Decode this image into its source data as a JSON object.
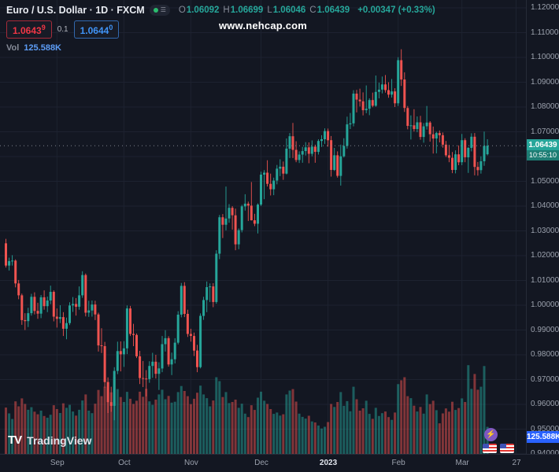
{
  "watermark": "www.nehcap.com",
  "logo_word": "TradingView",
  "logo_mark": "TV",
  "header": {
    "symbol_title": "Euro / U.S. Dollar · 1D · FXCM",
    "ohlc": {
      "o_label": "O",
      "o": "1.06092",
      "h_label": "H",
      "h": "1.06699",
      "l_label": "L",
      "l": "1.06046",
      "c_label": "C",
      "c": "1.06439",
      "change": "+0.00347 (+0.33%)"
    },
    "bid": {
      "main": "1.0643",
      "sup": "9"
    },
    "spread": "0.1",
    "ask": {
      "main": "1.0644",
      "sup": "0"
    },
    "vol_label": "Vol",
    "vol_value": "125.588K"
  },
  "price_axis": {
    "labels": [
      "1.12000",
      "1.11000",
      "1.10000",
      "1.09000",
      "1.08000",
      "1.07000",
      "1.05000",
      "1.04000",
      "1.03000",
      "1.02000",
      "1.01000",
      "1.00000",
      "0.99000",
      "0.98000",
      "0.97000",
      "0.96000",
      "0.95000",
      "0.94000"
    ],
    "last_price_badge": {
      "price": "1.06439",
      "countdown": "10:55:10"
    },
    "volume_badge": "125.588K"
  },
  "x_axis": {
    "labels": [
      {
        "text": "Sep",
        "i": 16
      },
      {
        "text": "Oct",
        "i": 37
      },
      {
        "text": "Nov",
        "i": 58
      },
      {
        "text": "Dec",
        "i": 80
      },
      {
        "text": "2023",
        "i": 101,
        "emph": true
      },
      {
        "text": "Feb",
        "i": 123
      },
      {
        "text": "Mar",
        "i": 143
      },
      {
        "text": "27",
        "i": 160
      }
    ]
  },
  "colors": {
    "background": "#131722",
    "grid": "#1d2230",
    "up": "#26a69a",
    "down": "#ef5350",
    "axis_text": "#9ba1ad",
    "last_price_line": "#8b9098",
    "badge_price_bg": "#26a69a",
    "badge_countdown_bg": "#1d7d74",
    "badge_volume_bg": "#2962ff",
    "bid_red": "#f23645",
    "ask_blue": "#4094f7",
    "volume_value_blue": "#5d9cf5",
    "lightning_purple": "#7e57c2"
  },
  "chart_data": {
    "type": "candlestick",
    "title": "Euro / U.S. Dollar, 1D, FXCM",
    "interval": "1D",
    "price_range": [
      0.94,
      1.12
    ],
    "grid": true,
    "volume_axis_max_k": 420,
    "columns": [
      "open",
      "high",
      "low",
      "close",
      "volume_k"
    ],
    "candles": [
      [
        1.025,
        1.0268,
        1.0152,
        1.016,
        215
      ],
      [
        1.016,
        1.0192,
        1.014,
        1.0178,
        188
      ],
      [
        1.0178,
        1.0202,
        1.016,
        1.018,
        162
      ],
      [
        1.018,
        1.0185,
        1.0072,
        1.0088,
        244
      ],
      [
        1.0088,
        1.0102,
        1.0024,
        1.004,
        221
      ],
      [
        1.004,
        1.0047,
        0.9921,
        0.994,
        258
      ],
      [
        0.994,
        0.9968,
        0.99,
        0.9936,
        232
      ],
      [
        0.9936,
        0.999,
        0.9912,
        0.9968,
        205
      ],
      [
        0.9968,
        1.0046,
        0.9958,
        1.0034,
        217
      ],
      [
        1.0034,
        1.0052,
        0.9963,
        0.9977,
        196
      ],
      [
        0.9977,
        1.001,
        0.9945,
        0.9966,
        184
      ],
      [
        0.9966,
        1.0041,
        0.9948,
        1.0032,
        201
      ],
      [
        1.0032,
        1.006,
        0.9982,
        0.9996,
        176
      ],
      [
        0.9996,
        1.0035,
        0.9972,
        1.0019,
        168
      ],
      [
        1.0019,
        1.0079,
        1.0004,
        1.0054,
        182
      ],
      [
        1.0054,
        1.006,
        0.9935,
        0.9954,
        226
      ],
      [
        0.9954,
        0.9987,
        0.991,
        0.9945,
        208
      ],
      [
        0.9945,
        1.0,
        0.9928,
        0.9952,
        190
      ],
      [
        0.9952,
        0.9972,
        0.9876,
        0.9905,
        235
      ],
      [
        0.9905,
        0.995,
        0.9863,
        0.9928,
        214
      ],
      [
        0.9928,
        1.0012,
        0.992,
        0.9999,
        228
      ],
      [
        0.9999,
        1.0033,
        0.9973,
        1.0005,
        197
      ],
      [
        1.0005,
        1.0029,
        0.9958,
        0.9994,
        178
      ],
      [
        0.9994,
        1.0076,
        0.9982,
        1.004,
        205
      ],
      [
        1.004,
        1.0137,
        1.003,
        1.0122,
        248
      ],
      [
        1.0122,
        1.0128,
        0.9955,
        0.997,
        276
      ],
      [
        0.997,
        1.0018,
        0.9953,
        0.9979,
        201
      ],
      [
        0.9979,
        1.0019,
        0.9954,
        1.0003,
        189
      ],
      [
        1.0003,
        1.0018,
        0.994,
        0.9963,
        233
      ],
      [
        0.9963,
        0.997,
        0.9813,
        0.9838,
        297
      ],
      [
        0.9838,
        0.9907,
        0.9807,
        0.9835,
        268
      ],
      [
        0.9835,
        0.9852,
        0.9668,
        0.969,
        312
      ],
      [
        0.969,
        0.9709,
        0.9565,
        0.9609,
        334
      ],
      [
        0.9609,
        0.9671,
        0.957,
        0.9594,
        286
      ],
      [
        0.9594,
        0.975,
        0.9536,
        0.9735,
        358
      ],
      [
        0.9735,
        0.9853,
        0.9722,
        0.9815,
        301
      ],
      [
        0.9815,
        0.9854,
        0.9733,
        0.9802,
        264
      ],
      [
        0.9802,
        0.9855,
        0.9751,
        0.9826,
        241
      ],
      [
        0.9826,
        0.9999,
        0.9803,
        0.9987,
        288
      ],
      [
        0.9987,
        0.9997,
        0.9876,
        0.9884,
        256
      ],
      [
        0.9884,
        0.9925,
        0.9835,
        0.988,
        232
      ],
      [
        0.988,
        0.9886,
        0.9787,
        0.9794,
        247
      ],
      [
        0.9794,
        0.9816,
        0.9682,
        0.9706,
        289
      ],
      [
        0.9706,
        0.9775,
        0.967,
        0.9704,
        265
      ],
      [
        0.9704,
        0.9738,
        0.9632,
        0.9702,
        302
      ],
      [
        0.9702,
        0.9774,
        0.9687,
        0.9755,
        244
      ],
      [
        0.9755,
        0.9808,
        0.9707,
        0.9772,
        228
      ],
      [
        0.9772,
        0.98,
        0.9704,
        0.9723,
        252
      ],
      [
        0.9723,
        0.977,
        0.9658,
        0.9745,
        276
      ],
      [
        0.9745,
        0.9876,
        0.973,
        0.9843,
        298
      ],
      [
        0.9843,
        0.9899,
        0.9813,
        0.9867,
        254
      ],
      [
        0.9867,
        0.9875,
        0.9752,
        0.9761,
        269
      ],
      [
        0.9761,
        0.9809,
        0.9718,
        0.9782,
        238
      ],
      [
        0.9782,
        0.9867,
        0.9765,
        0.9849,
        242
      ],
      [
        0.9849,
        0.9976,
        0.9842,
        0.9962,
        287
      ],
      [
        0.9962,
        1.009,
        0.9951,
        1.0078,
        315
      ],
      [
        1.0078,
        1.0093,
        0.9952,
        0.9965,
        292
      ],
      [
        0.9965,
        0.9982,
        0.9872,
        0.9884,
        268
      ],
      [
        0.9884,
        0.9905,
        0.9853,
        0.9876,
        231
      ],
      [
        0.9876,
        0.989,
        0.9795,
        0.9817,
        256
      ],
      [
        0.9817,
        0.984,
        0.973,
        0.975,
        284
      ],
      [
        0.975,
        0.9967,
        0.9745,
        0.9957,
        317
      ],
      [
        0.9957,
        1.0034,
        0.9941,
        1.0021,
        276
      ],
      [
        1.0021,
        1.0096,
        0.9972,
        1.0073,
        259
      ],
      [
        1.0073,
        1.0088,
        1.0013,
        1.0076,
        221
      ],
      [
        1.0076,
        1.0089,
        0.9992,
        1.0013,
        248
      ],
      [
        1.0013,
        1.0222,
        1.0006,
        1.0208,
        356
      ],
      [
        1.0208,
        1.0364,
        1.0186,
        1.0355,
        338
      ],
      [
        1.0355,
        1.0368,
        1.0271,
        1.0325,
        264
      ],
      [
        1.0325,
        1.0479,
        1.0302,
        1.035,
        287
      ],
      [
        1.035,
        1.0408,
        1.0333,
        1.0393,
        236
      ],
      [
        1.0393,
        1.04,
        1.0305,
        1.0363,
        241
      ],
      [
        1.0363,
        1.039,
        1.0222,
        1.0246,
        252
      ],
      [
        1.0246,
        1.031,
        1.0226,
        1.0303,
        214
      ],
      [
        1.0303,
        1.0405,
        1.0294,
        1.0399,
        233
      ],
      [
        1.0399,
        1.0448,
        1.0382,
        1.041,
        187
      ],
      [
        1.041,
        1.0418,
        1.034,
        1.0402,
        171
      ],
      [
        1.0402,
        1.0497,
        1.0342,
        1.0343,
        226
      ],
      [
        1.0343,
        1.0369,
        1.0319,
        1.0329,
        204
      ],
      [
        1.0329,
        1.0411,
        1.029,
        1.0406,
        261
      ],
      [
        1.0406,
        1.0539,
        1.04,
        1.0527,
        289
      ],
      [
        1.0527,
        1.0545,
        1.0428,
        1.0535,
        247
      ],
      [
        1.0535,
        1.0585,
        1.0479,
        1.049,
        232
      ],
      [
        1.049,
        1.0531,
        1.0443,
        1.0468,
        208
      ],
      [
        1.0468,
        1.0515,
        1.0444,
        1.0503,
        186
      ],
      [
        1.0503,
        1.0566,
        1.0488,
        1.0551,
        192
      ],
      [
        1.0551,
        1.0589,
        1.0521,
        1.0559,
        178
      ],
      [
        1.0559,
        1.058,
        1.0506,
        1.0531,
        184
      ],
      [
        1.0531,
        1.0673,
        1.0528,
        1.0632,
        276
      ],
      [
        1.0632,
        1.0695,
        1.0594,
        1.0682,
        294
      ],
      [
        1.0682,
        1.0736,
        1.0594,
        1.0627,
        301
      ],
      [
        1.0627,
        1.0662,
        1.0577,
        1.0586,
        243
      ],
      [
        1.0586,
        1.0621,
        1.0574,
        1.0608,
        187
      ],
      [
        1.0608,
        1.0639,
        1.0575,
        1.0622,
        172
      ],
      [
        1.0622,
        1.0658,
        1.0604,
        1.0637,
        164
      ],
      [
        1.0637,
        1.0657,
        1.0573,
        1.0611,
        177
      ],
      [
        1.0611,
        1.0665,
        1.0601,
        1.064,
        151
      ],
      [
        1.064,
        1.0648,
        1.0575,
        1.0619,
        146
      ],
      [
        1.0619,
        1.067,
        1.0608,
        1.0663,
        132
      ],
      [
        1.0663,
        1.0686,
        1.0639,
        1.067,
        118
      ],
      [
        1.067,
        1.0714,
        1.0651,
        1.0703,
        126
      ],
      [
        1.0703,
        1.0713,
        1.064,
        1.0666,
        148
      ],
      [
        1.0666,
        1.0683,
        1.0519,
        1.0546,
        232
      ],
      [
        1.0546,
        1.0635,
        1.0542,
        1.0605,
        218
      ],
      [
        1.0605,
        1.0621,
        1.0515,
        1.0522,
        241
      ],
      [
        1.0522,
        1.0648,
        1.0483,
        1.0601,
        287
      ],
      [
        1.0601,
        1.0674,
        1.0596,
        1.0643,
        223
      ],
      [
        1.0643,
        1.0761,
        1.0632,
        1.073,
        245
      ],
      [
        1.073,
        1.0776,
        1.0711,
        1.0734,
        198
      ],
      [
        1.0734,
        1.0868,
        1.0722,
        1.0854,
        312
      ],
      [
        1.0854,
        1.0869,
        1.0778,
        1.083,
        254
      ],
      [
        1.083,
        1.0874,
        1.0802,
        1.0823,
        201
      ],
      [
        1.0823,
        1.0859,
        1.0766,
        1.0787,
        212
      ],
      [
        1.0787,
        1.0887,
        1.0775,
        1.0793,
        247
      ],
      [
        1.0793,
        1.0835,
        1.0767,
        1.0828,
        186
      ],
      [
        1.0828,
        1.0858,
        1.0799,
        1.0805,
        163
      ],
      [
        1.0805,
        1.0927,
        1.0801,
        1.0861,
        214
      ],
      [
        1.0861,
        1.0898,
        1.0835,
        1.087,
        176
      ],
      [
        1.087,
        1.0923,
        1.0855,
        1.0891,
        189
      ],
      [
        1.0891,
        1.0929,
        1.0858,
        1.0868,
        197
      ],
      [
        1.0868,
        1.09,
        1.0837,
        1.085,
        171
      ],
      [
        1.085,
        1.0913,
        1.0838,
        1.0863,
        158
      ],
      [
        1.0863,
        1.0876,
        1.08,
        1.0815,
        192
      ],
      [
        1.0815,
        1.1001,
        1.0804,
        1.0989,
        324
      ],
      [
        1.0989,
        1.1033,
        1.0885,
        1.0911,
        342
      ],
      [
        1.0911,
        1.094,
        1.078,
        1.0796,
        356
      ],
      [
        1.0796,
        1.0804,
        1.071,
        1.0724,
        268
      ],
      [
        1.0724,
        1.0766,
        1.0669,
        1.0726,
        259
      ],
      [
        1.0726,
        1.0791,
        1.0701,
        1.0711,
        224
      ],
      [
        1.0711,
        1.0762,
        1.0698,
        1.0738,
        197
      ],
      [
        1.0738,
        1.0764,
        1.0668,
        1.0679,
        218
      ],
      [
        1.0679,
        1.0735,
        1.0656,
        1.0722,
        187
      ],
      [
        1.0722,
        1.0804,
        1.0709,
        1.0737,
        276
      ],
      [
        1.0737,
        1.0743,
        1.066,
        1.069,
        231
      ],
      [
        1.069,
        1.0721,
        1.0612,
        1.0673,
        247
      ],
      [
        1.0673,
        1.07,
        1.0613,
        1.0695,
        203
      ],
      [
        1.0695,
        1.0705,
        1.0657,
        1.0686,
        142
      ],
      [
        1.0686,
        1.0697,
        1.0636,
        1.0648,
        188
      ],
      [
        1.0648,
        1.0663,
        1.0598,
        1.0605,
        211
      ],
      [
        1.0605,
        1.0647,
        1.0577,
        1.0595,
        196
      ],
      [
        1.0595,
        1.0618,
        1.0533,
        1.0546,
        242
      ],
      [
        1.0546,
        1.0625,
        1.0532,
        1.0609,
        204
      ],
      [
        1.0609,
        1.0645,
        1.0565,
        1.0577,
        213
      ],
      [
        1.0577,
        1.0691,
        1.0565,
        1.0666,
        258
      ],
      [
        1.0666,
        1.0674,
        1.0577,
        1.0597,
        241
      ],
      [
        1.0597,
        1.0638,
        1.0534,
        1.0635,
        412
      ],
      [
        1.0635,
        1.0694,
        1.0621,
        1.068,
        302
      ],
      [
        1.068,
        1.0695,
        1.0524,
        1.0558,
        371
      ],
      [
        1.0558,
        1.0578,
        1.0523,
        1.0545,
        298
      ],
      [
        1.0545,
        1.0601,
        1.0531,
        1.0581,
        312
      ],
      [
        1.0581,
        1.0701,
        1.0563,
        1.0643,
        408
      ],
      [
        1.06092,
        1.06699,
        1.06046,
        1.06439,
        125.588
      ]
    ]
  }
}
